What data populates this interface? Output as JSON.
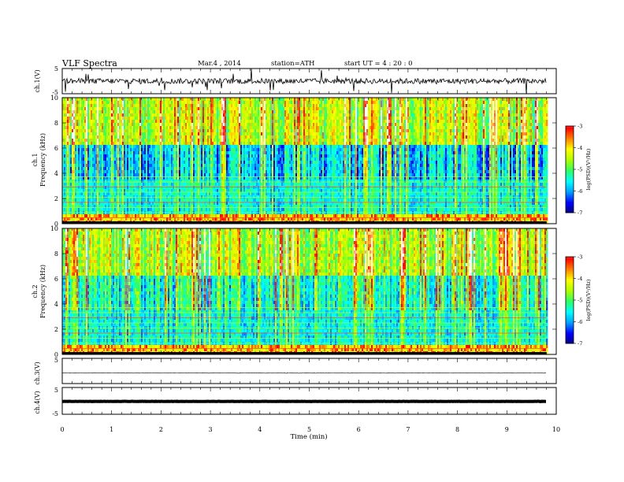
{
  "header": {
    "title": "VLF  Spectra",
    "date": "Mar.4  , 2014",
    "station": "station=ATH",
    "start": "start  UT  =    4  : 20 : 0"
  },
  "chart_data": [
    {
      "type": "line",
      "name": "ch1-waveform",
      "ylabel": "ch.1(V)",
      "ylim": [
        -5,
        5
      ],
      "yticks": [
        "5",
        "-5"
      ],
      "description_level": "noisy waveform around 0 V with frequent spikes"
    },
    {
      "type": "heatmap",
      "name": "ch1-spectrogram",
      "ylabel_line1": "ch.1",
      "ylabel_line2": "Frequency  (kHz)",
      "ylim": [
        0,
        10
      ],
      "yticks": [
        "0",
        "2",
        "4",
        "6",
        "8",
        "10"
      ],
      "colorbar": {
        "label": "log(PSD)(V²/Hz)",
        "range": [
          -7,
          -3
        ],
        "ticks": [
          "-3",
          "-4",
          "-5",
          "-6",
          "-7"
        ]
      }
    },
    {
      "type": "heatmap",
      "name": "ch2-spectrogram",
      "ylabel_line1": "ch.2",
      "ylabel_line2": "Frequency  (kHz)",
      "ylim": [
        0,
        10
      ],
      "yticks": [
        "0",
        "2",
        "4",
        "6",
        "8",
        "10"
      ],
      "colorbar": {
        "label": "log(PSD)(V²/Hz)",
        "range": [
          -7,
          -3
        ],
        "ticks": [
          "-3",
          "-4",
          "-5",
          "-6",
          "-7"
        ]
      }
    },
    {
      "type": "line",
      "name": "ch3-waveform",
      "ylabel": "ch.3(V)",
      "ylim": [
        -5,
        5
      ],
      "yticks": [
        "5"
      ],
      "level": -0.8
    },
    {
      "type": "line",
      "name": "ch4-waveform",
      "ylabel": "ch.4(V)",
      "ylim": [
        -5,
        5
      ],
      "yticks": [
        "5",
        "-5"
      ],
      "level": -0.2
    }
  ],
  "xaxis": {
    "label": "Time  (min)",
    "range": [
      0,
      10
    ],
    "ticks": [
      "0",
      "1",
      "2",
      "3",
      "4",
      "5",
      "6",
      "7",
      "8",
      "9",
      "10"
    ],
    "data_end": 9.8
  },
  "colors": {
    "colormap": [
      "#000080",
      "#0000ff",
      "#00a0ff",
      "#00ffff",
      "#30ff60",
      "#b0ff00",
      "#ffff00",
      "#ff8000",
      "#ff0000",
      "#ffffff"
    ]
  }
}
